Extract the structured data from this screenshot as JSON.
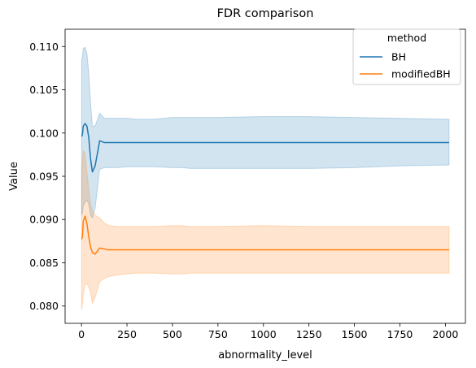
{
  "chart_data": {
    "type": "line",
    "title": "FDR comparison",
    "xlabel": "abnormality_level",
    "ylabel": "Value",
    "xlim": [
      -90,
      2110
    ],
    "ylim": [
      0.078,
      0.112
    ],
    "xticks": [
      0,
      250,
      500,
      750,
      1000,
      1250,
      1500,
      1750,
      2000
    ],
    "yticks": [
      0.08,
      0.085,
      0.09,
      0.095,
      0.1,
      0.105,
      0.11
    ],
    "ytick_labels": [
      "0.080",
      "0.085",
      "0.090",
      "0.095",
      "0.100",
      "0.105",
      "0.110"
    ],
    "grid": false,
    "legend": {
      "title": "method",
      "position": "top-right"
    },
    "series": [
      {
        "name": "BH",
        "color": "#1f77b4",
        "x": [
          1,
          5,
          10,
          20,
          30,
          40,
          50,
          60,
          75,
          100,
          125,
          150,
          200,
          250,
          300,
          400,
          500,
          550,
          600,
          750,
          1000,
          1250,
          1500,
          1750,
          2020
        ],
        "y": [
          0.0996,
          0.0998,
          0.1008,
          0.1011,
          0.1008,
          0.0995,
          0.097,
          0.0955,
          0.0962,
          0.0991,
          0.0989,
          0.0989,
          0.0989,
          0.0989,
          0.0989,
          0.0989,
          0.0989,
          0.0989,
          0.0989,
          0.0989,
          0.0989,
          0.0989,
          0.0989,
          0.0989,
          0.0989
        ],
        "y_upper": [
          0.1085,
          0.1088,
          0.1098,
          0.1099,
          0.1092,
          0.107,
          0.1035,
          0.1008,
          0.1008,
          0.1023,
          0.1017,
          0.1017,
          0.1017,
          0.1017,
          0.1016,
          0.1016,
          0.1018,
          0.1018,
          0.1018,
          0.1018,
          0.1019,
          0.1019,
          0.1018,
          0.1017,
          0.1016
        ],
        "y_lower": [
          0.0905,
          0.0908,
          0.0916,
          0.092,
          0.0922,
          0.0918,
          0.0905,
          0.0902,
          0.0913,
          0.0958,
          0.096,
          0.096,
          0.096,
          0.0961,
          0.0961,
          0.0961,
          0.096,
          0.096,
          0.0959,
          0.0959,
          0.0959,
          0.0959,
          0.096,
          0.0962,
          0.0963
        ]
      },
      {
        "name": "modifiedBH",
        "color": "#ff7f0e",
        "x": [
          1,
          5,
          10,
          20,
          30,
          40,
          50,
          60,
          75,
          100,
          125,
          150,
          200,
          250,
          300,
          400,
          500,
          550,
          600,
          750,
          1000,
          1250,
          1500,
          1750,
          2020
        ],
        "y": [
          0.0877,
          0.088,
          0.0898,
          0.0904,
          0.0895,
          0.088,
          0.0868,
          0.0862,
          0.086,
          0.0867,
          0.0866,
          0.0865,
          0.0865,
          0.0865,
          0.0865,
          0.0865,
          0.0865,
          0.0865,
          0.0865,
          0.0865,
          0.0865,
          0.0865,
          0.0865,
          0.0865,
          0.0865
        ],
        "y_upper": [
          0.0958,
          0.0965,
          0.098,
          0.0975,
          0.0955,
          0.0935,
          0.0918,
          0.091,
          0.0905,
          0.0902,
          0.0896,
          0.0893,
          0.0892,
          0.0892,
          0.0892,
          0.0892,
          0.0893,
          0.0893,
          0.0892,
          0.0892,
          0.0893,
          0.0892,
          0.0892,
          0.0892,
          0.0892
        ],
        "y_lower": [
          0.0795,
          0.0802,
          0.0815,
          0.0825,
          0.0826,
          0.0822,
          0.0815,
          0.0803,
          0.081,
          0.0828,
          0.0832,
          0.0834,
          0.0836,
          0.0837,
          0.0838,
          0.0838,
          0.0837,
          0.0837,
          0.0838,
          0.0838,
          0.0838,
          0.0838,
          0.0838,
          0.0838,
          0.0838
        ]
      }
    ]
  }
}
